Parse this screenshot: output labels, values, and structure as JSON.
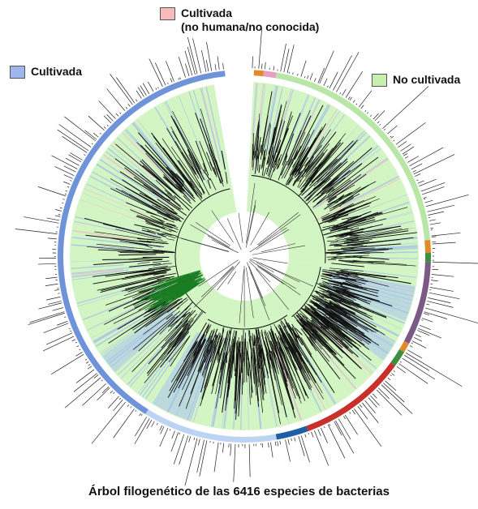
{
  "legend": [
    {
      "label": "Cultivada\n(no humana/no conocida)",
      "color": "#f6bcbc"
    },
    {
      "label": "Cultivada",
      "color": "#9db6ec"
    },
    {
      "label": "No cultivada",
      "color": "#c7f0b0"
    }
  ],
  "caption": "Árbol filogenético de las 6416 especies de bacterias",
  "colors": {
    "uncultivated_wedge": "#d3f5c4",
    "cultivated_ring": "#6f93d8",
    "cultivated_light_ring": "#bcd4f4",
    "ring_purple": "#7b5a86",
    "ring_red": "#c8302c",
    "ring_dark_blue": "#1f5fa6",
    "ring_orange": "#e08a2a",
    "ring_green": "#3c8f3e",
    "ring_pink": "#e8a0c0",
    "uncultivated_ring": "#b7e6a5",
    "branches": "#111111",
    "highlight_branch": "#1a7d24"
  }
}
